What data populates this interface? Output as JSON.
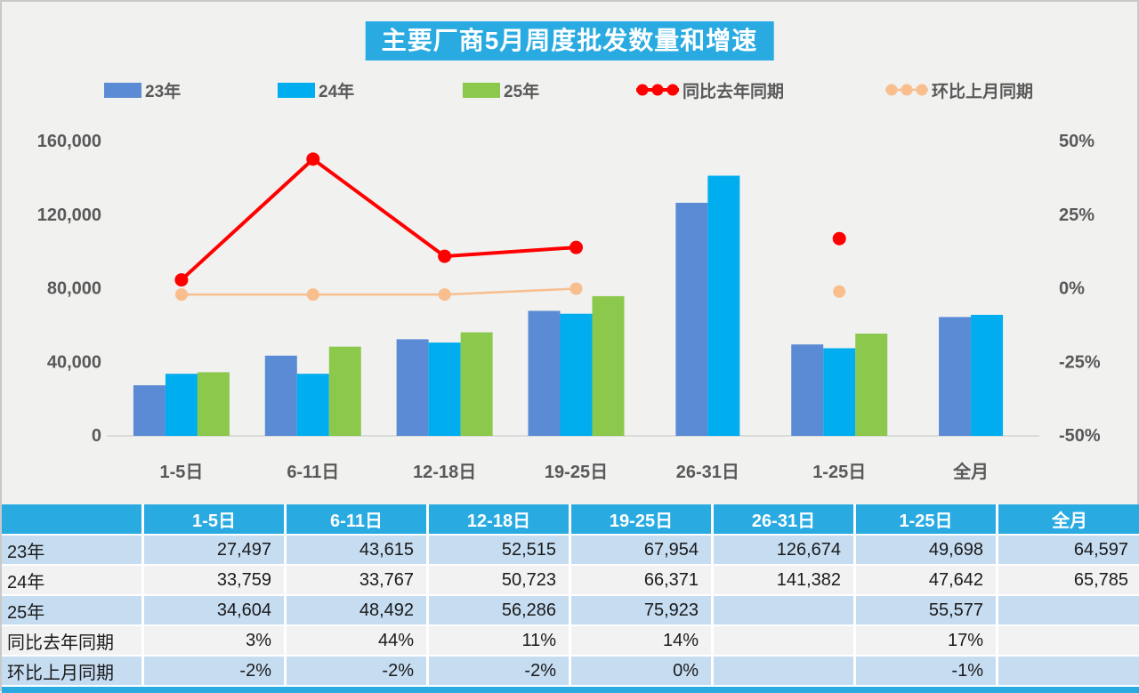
{
  "title": "主要厂商5月周度批发数量和增速",
  "colors": {
    "accent_cyan": "#29ABE2",
    "bar_23": "#5B8BD4",
    "bar_24": "#00AEEF",
    "bar_25": "#8CC84C",
    "line_yoy": "#FF0000",
    "line_mom": "#F8BE8D",
    "chart_text": "#595959",
    "axis_line": "#DBDBDB",
    "table_row_blue": "#C6DCF1",
    "table_row_gray": "#F2F2F2",
    "page_bg": "#F1F1F0"
  },
  "chart_data": {
    "type": "combo-bar-line",
    "title": "主要厂商5月周度批发数量和增速",
    "categories": [
      "1-5日",
      "6-11日",
      "12-18日",
      "19-25日",
      "26-31日",
      "1-25日",
      "全月"
    ],
    "bar_series": [
      {
        "key": "y23",
        "name": "23年",
        "color": "#5B8BD4",
        "values": [
          27497,
          43615,
          52515,
          67954,
          126674,
          49698,
          64597
        ]
      },
      {
        "key": "y24",
        "name": "24年",
        "color": "#00AEEF",
        "values": [
          33759,
          33767,
          50723,
          66371,
          141382,
          47642,
          65785
        ]
      },
      {
        "key": "y25",
        "name": "25年",
        "color": "#8CC84C",
        "values": [
          34604,
          48492,
          56286,
          75923,
          null,
          55577,
          null
        ]
      }
    ],
    "line_series": [
      {
        "key": "yoy",
        "name": "同比去年同期",
        "color": "#FF0000",
        "stroke_width": 4,
        "marker_r": 7.5,
        "values_pct": [
          3,
          44,
          11,
          14,
          null,
          17,
          null
        ]
      },
      {
        "key": "mom",
        "name": "环比上月同期",
        "color": "#F8BE8D",
        "stroke_width": 2.5,
        "marker_r": 7,
        "values_pct": [
          -2,
          -2,
          -2,
          0,
          null,
          -1,
          null
        ]
      }
    ],
    "left_axis": {
      "min": 0,
      "max": 160000,
      "tick_labels_bottom_to_top": [
        "0",
        "40,000",
        "80,000",
        "120,000",
        "160,000"
      ]
    },
    "right_axis": {
      "min": -50,
      "max": 50,
      "tick_labels_bottom_to_top": [
        "-50%",
        "-25%",
        "0%",
        "25%",
        "50%"
      ]
    },
    "grid": "none",
    "legend_position": "top"
  },
  "table": {
    "columns": [
      "",
      "1-5日",
      "6-11日",
      "12-18日",
      "19-25日",
      "26-31日",
      "1-25日",
      "全月"
    ],
    "rows": [
      {
        "label": "23年",
        "values": [
          "27,497",
          "43,615",
          "52,515",
          "67,954",
          "126,674",
          "49,698",
          "64,597"
        ]
      },
      {
        "label": "24年",
        "values": [
          "33,759",
          "33,767",
          "50,723",
          "66,371",
          "141,382",
          "47,642",
          "65,785"
        ]
      },
      {
        "label": "25年",
        "values": [
          "34,604",
          "48,492",
          "56,286",
          "75,923",
          "",
          "55,577",
          ""
        ]
      },
      {
        "label": "同比去年同期",
        "values": [
          "3%",
          "44%",
          "11%",
          "14%",
          "",
          "17%",
          ""
        ]
      },
      {
        "label": "环比上月同期",
        "values": [
          "-2%",
          "-2%",
          "-2%",
          "0%",
          "",
          "-1%",
          ""
        ]
      }
    ]
  }
}
